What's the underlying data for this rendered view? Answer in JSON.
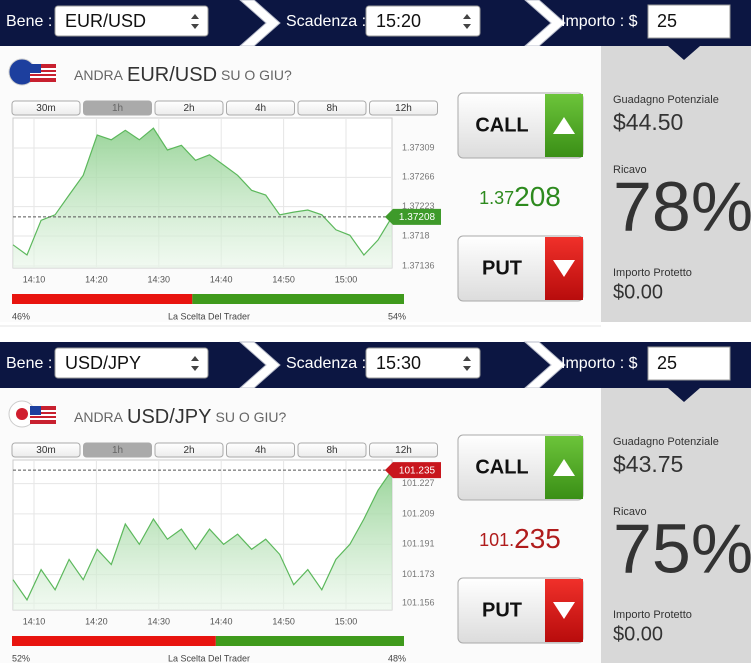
{
  "panels": [
    {
      "bar": {
        "asset_label": "Bene :",
        "asset": "EUR/USD",
        "expiry_label": "Scadenza :",
        "expiry": "15:20",
        "amount_label": "Importo : $",
        "amount": "25"
      },
      "question": {
        "pre": "ANDRA",
        "asset": "EUR/USD",
        "post": "SU O GIU?"
      },
      "timeframes": [
        "30m",
        "1h",
        "2h",
        "4h",
        "8h",
        "12h"
      ],
      "active_timeframe": 1,
      "chart": {
        "type": "line",
        "x_labels": [
          "14:10",
          "14:20",
          "14:30",
          "14:40",
          "14:50",
          "15:00"
        ],
        "values": [
          1.37167,
          1.37152,
          1.37203,
          1.37211,
          1.3724,
          1.37269,
          1.37328,
          1.37321,
          1.37335,
          1.37321,
          1.37338,
          1.37306,
          1.37313,
          1.37291,
          1.37299,
          1.37284,
          1.37269,
          1.37247,
          1.3724,
          1.37211,
          1.37215,
          1.37218,
          1.37211,
          1.37189,
          1.37181,
          1.37152,
          1.37174,
          1.37208
        ],
        "ylim": [
          1.37133,
          1.37353
        ],
        "yticks": [
          1.37136,
          1.3718,
          1.37223,
          1.37266,
          1.37309
        ],
        "current": 1.37208,
        "color": "#5cb85c",
        "marker_color": "#3e9a2a"
      },
      "sentiment": {
        "title": "La Scelta Del Trader",
        "values": [
          46,
          54
        ],
        "value_labels": [
          "46%",
          "54%"
        ],
        "colors": [
          "#e8140f",
          "#3f9a1c"
        ]
      },
      "call": "CALL",
      "put": "PUT",
      "price": {
        "head": "1.37",
        "tail": "208",
        "color": "#2d8a1e"
      },
      "payout": {
        "potential_label": "Guadagno Potenziale",
        "potential": "$44.50",
        "return_label": "Ricavo",
        "return": "78%",
        "protected_label": "Importo Protetto",
        "protected": "$0.00"
      }
    },
    {
      "bar": {
        "asset_label": "Bene :",
        "asset": "USD/JPY",
        "expiry_label": "Scadenza :",
        "expiry": "15:30",
        "amount_label": "Importo : $",
        "amount": "25"
      },
      "question": {
        "pre": "ANDRA",
        "asset": "USD/JPY",
        "post": "SU O GIU?"
      },
      "timeframes": [
        "30m",
        "1h",
        "2h",
        "4h",
        "8h",
        "12h"
      ],
      "active_timeframe": 1,
      "chart": {
        "type": "line",
        "x_labels": [
          "14:10",
          "14:20",
          "14:30",
          "14:40",
          "14:50",
          "15:00"
        ],
        "values": [
          101.17,
          101.158,
          101.176,
          101.164,
          101.182,
          101.17,
          101.188,
          101.179,
          101.203,
          101.191,
          101.206,
          101.194,
          101.2,
          101.188,
          101.2,
          101.191,
          101.197,
          101.188,
          101.194,
          101.185,
          101.167,
          101.176,
          101.164,
          101.182,
          101.191,
          101.206,
          101.223,
          101.235
        ],
        "ylim": [
          101.152,
          101.241
        ],
        "yticks": [
          101.156,
          101.173,
          101.191,
          101.209,
          101.227
        ],
        "current": 101.235,
        "color": "#5cb85c",
        "marker_color": "#c8161d"
      },
      "sentiment": {
        "title": "La Scelta Del Trader",
        "values": [
          52,
          48
        ],
        "value_labels": [
          "52%",
          "48%"
        ],
        "colors": [
          "#e8140f",
          "#3f9a1c"
        ]
      },
      "call": "CALL",
      "put": "PUT",
      "price": {
        "head": "101.",
        "tail": "235",
        "color": "#b01c1c"
      },
      "payout": {
        "potential_label": "Guadagno Potenziale",
        "potential": "$43.75",
        "return_label": "Ricavo",
        "return": "75%",
        "protected_label": "Importo Protetto",
        "protected": "$0.00"
      }
    }
  ]
}
